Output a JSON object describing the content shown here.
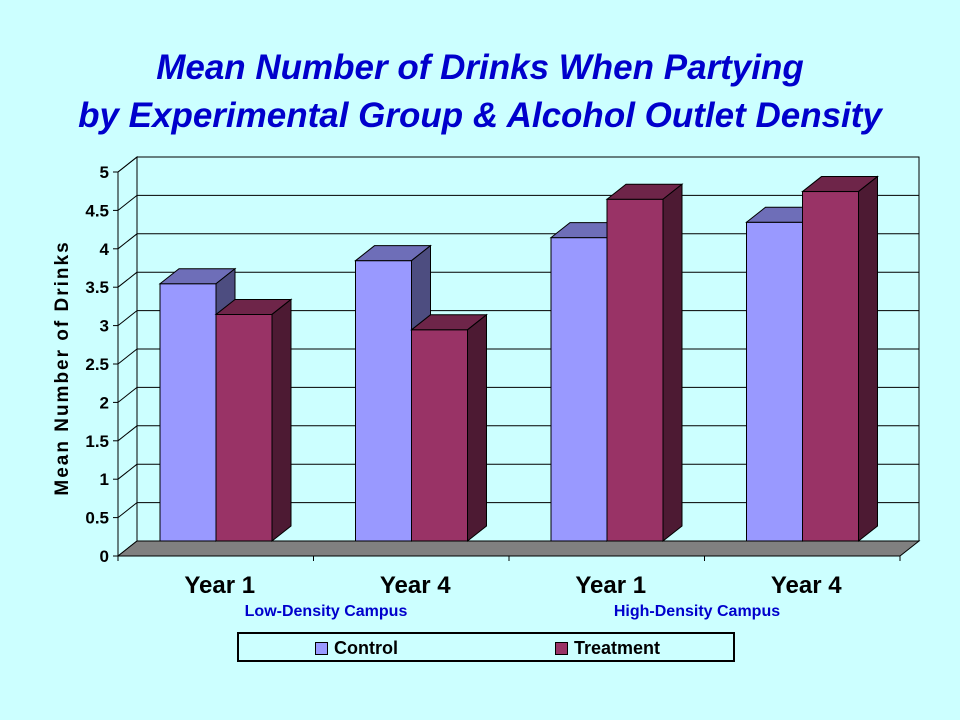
{
  "title_line1": "Mean Number of Drinks When Partying",
  "title_line2": "by Experimental Group & Alcohol Outlet Density",
  "groups": [
    "Low-Density Campus",
    "High-Density Campus"
  ],
  "colors": {
    "control": "#9999ff",
    "treatment": "#993366",
    "text_blue": "#0000cc",
    "background": "#ccffff"
  },
  "chart_data": {
    "type": "bar",
    "categories": [
      "Year 1",
      "Year 4",
      "Year 1",
      "Year 4"
    ],
    "series": [
      {
        "name": "Control",
        "values": [
          3.35,
          3.65,
          3.95,
          4.15
        ]
      },
      {
        "name": "Treatment",
        "values": [
          2.95,
          2.75,
          4.45,
          4.55
        ]
      }
    ],
    "ylabel": "Mean Number of Drinks",
    "xlabel": "",
    "ylim": [
      0,
      5
    ],
    "yticks": [
      "0",
      "0.5",
      "1",
      "1.5",
      "2",
      "2.5",
      "3",
      "3.5",
      "4",
      "4.5",
      "5"
    ],
    "grid": true,
    "legend_position": "bottom"
  }
}
